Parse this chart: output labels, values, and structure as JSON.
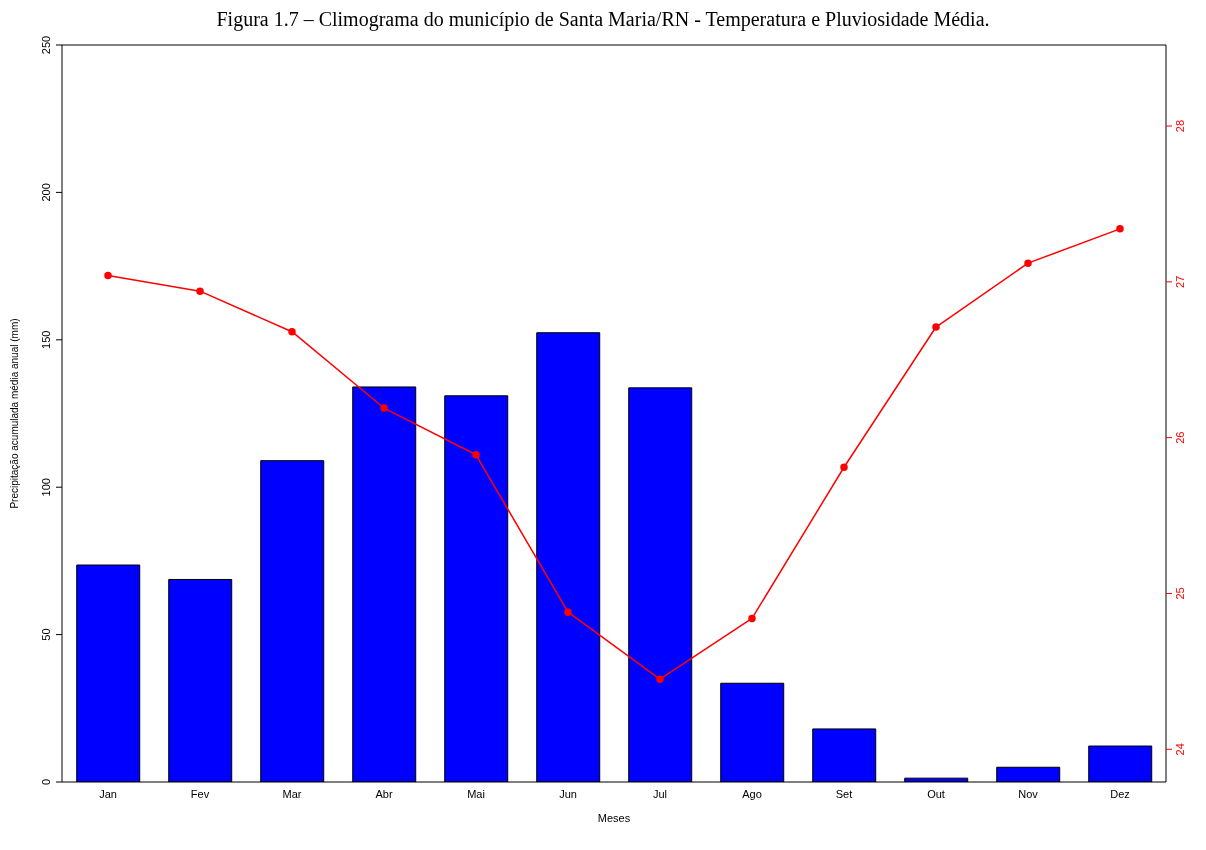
{
  "chart_data": {
    "type": "bar",
    "title": "Figura 1.7 – Climograma do município de Santa Maria/RN - Temperatura e Pluviosidade Média.",
    "xlabel": "Meses",
    "ylabel": "Precipitação acumulada média anual (mm)",
    "categories": [
      "Jan",
      "Fev",
      "Mar",
      "Abr",
      "Mai",
      "Jun",
      "Jul",
      "Ago",
      "Set",
      "Out",
      "Nov",
      "Dez"
    ],
    "series": [
      {
        "color": "#0000ff",
        "values": [
          73.6,
          68.7,
          109,
          134,
          131,
          152.4,
          133.7,
          33.5,
          18,
          1.3,
          5,
          12.2
        ]
      },
      {
        "type": "line",
        "axis": "y2",
        "color": "#ff0000",
        "values": [
          27.04,
          26.94,
          26.68,
          26.19,
          25.89,
          24.88,
          24.45,
          24.84,
          25.81,
          26.71,
          27.12,
          27.34
        ]
      }
    ],
    "ylim": [
      0,
      250
    ],
    "yticks": [
      0,
      50,
      100,
      150,
      200,
      250
    ],
    "y2lim": [
      23.79,
      28.52
    ],
    "y2ticks": [
      24,
      25,
      26,
      27,
      28
    ],
    "marker": "circle",
    "line_style": "solid",
    "grid": false,
    "legend": false
  }
}
